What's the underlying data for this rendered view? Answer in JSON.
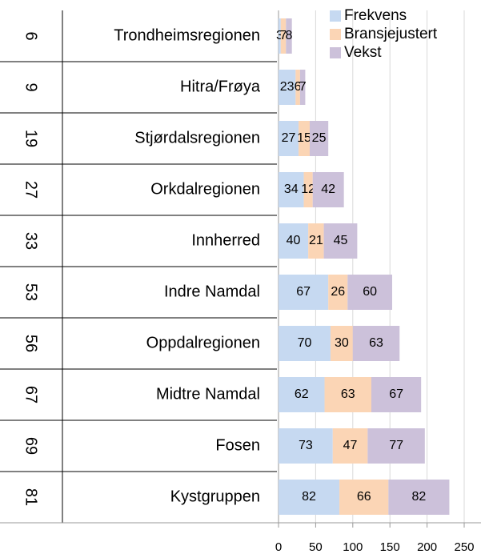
{
  "chart_data": {
    "type": "bar",
    "orientation": "horizontal",
    "stacked": true,
    "ranks": [
      6,
      9,
      19,
      27,
      33,
      53,
      56,
      67,
      69,
      81
    ],
    "categories": [
      "Trondheimsregionen",
      "Hitra/Frøya",
      "Stjørdalsregionen",
      "Orkdalregionen",
      "Innherred",
      "Indre Namdal",
      "Oppdalregionen",
      "Midtre Namdal",
      "Fosen",
      "Kystgruppen"
    ],
    "series": [
      {
        "name": "Frekvens",
        "color": "#c6d9f1",
        "values": [
          3,
          23,
          27,
          34,
          40,
          67,
          70,
          62,
          73,
          82
        ]
      },
      {
        "name": "Bransjejustert",
        "color": "#fbd5b5",
        "values": [
          7,
          6,
          15,
          12,
          21,
          26,
          30,
          63,
          47,
          66
        ]
      },
      {
        "name": "Vekst",
        "color": "#ccc1da",
        "values": [
          8,
          7,
          25,
          42,
          45,
          60,
          63,
          67,
          77,
          82
        ]
      }
    ],
    "xlim": [
      0,
      250
    ],
    "xticks": [
      0,
      50,
      100,
      150,
      200,
      250
    ],
    "grid": true,
    "legend": "top-right"
  }
}
